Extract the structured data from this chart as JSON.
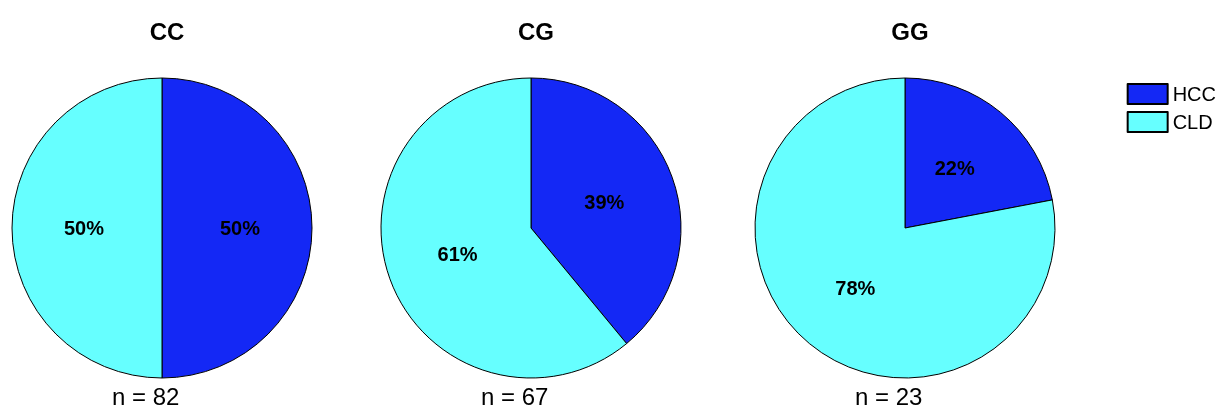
{
  "chart_data": [
    {
      "type": "pie",
      "title": "CC",
      "categories": [
        null,
        null
      ],
      "values": [
        50,
        50
      ],
      "value_labels": [
        "50%",
        "50%"
      ],
      "colors": [
        "#1428f5",
        "#66ffff"
      ],
      "legend": false,
      "annotations": [
        "n = 82"
      ]
    },
    {
      "type": "pie",
      "title": "CG",
      "categories": [
        null,
        null
      ],
      "values": [
        39,
        61
      ],
      "value_labels": [
        "39%",
        "61%"
      ],
      "colors": [
        "#1428f5",
        "#66ffff"
      ],
      "legend": false,
      "annotations": [
        "n = 67"
      ]
    },
    {
      "type": "pie",
      "title": "GG",
      "categories": [
        "HCC",
        "CLD"
      ],
      "values": [
        22,
        78
      ],
      "value_labels": [
        "22%",
        "78%"
      ],
      "colors": [
        "#1428f5",
        "#66ffff"
      ],
      "legend": "right",
      "annotations": [
        "n = 23"
      ]
    }
  ]
}
